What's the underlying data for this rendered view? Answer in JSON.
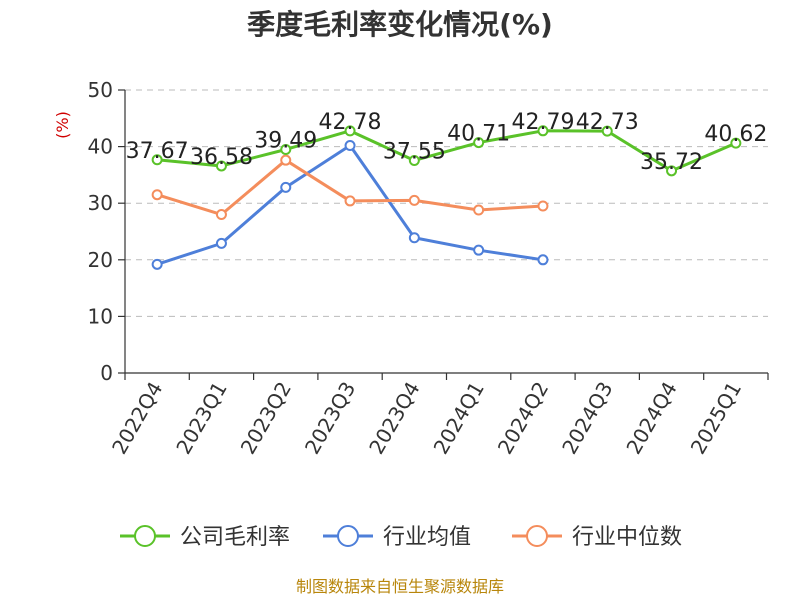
{
  "chart_data": {
    "type": "line",
    "title": "季度毛利率变化情况(%)",
    "ylabel": "(%)",
    "ylim": [
      0,
      50
    ],
    "yticks": [
      0,
      10,
      20,
      30,
      40,
      50
    ],
    "categories": [
      "2022Q4",
      "2023Q1",
      "2023Q2",
      "2023Q3",
      "2023Q4",
      "2024Q1",
      "2024Q2",
      "2024Q3",
      "2024Q4",
      "2025Q1"
    ],
    "grid": true,
    "legend_position": "bottom",
    "series": [
      {
        "name": "公司毛利率",
        "color": "#5ac229",
        "values": [
          37.67,
          36.58,
          39.49,
          42.78,
          37.55,
          40.71,
          42.79,
          42.73,
          35.72,
          40.62
        ],
        "labels": [
          "37.67",
          "36.58",
          "39.49",
          "42.78",
          "37.55",
          "40.71",
          "42.79",
          "42.73",
          "35.72",
          "40.62"
        ]
      },
      {
        "name": "行业均值",
        "color": "#4e7fd9",
        "values": [
          19.2,
          22.9,
          32.8,
          40.2,
          23.9,
          21.7,
          20.0,
          null,
          null,
          null
        ]
      },
      {
        "name": "行业中位数",
        "color": "#f48d5c",
        "values": [
          31.5,
          28.0,
          37.6,
          30.4,
          30.5,
          28.8,
          29.5,
          null,
          null,
          null
        ]
      }
    ],
    "source": "制图数据来自恒生聚源数据库"
  }
}
